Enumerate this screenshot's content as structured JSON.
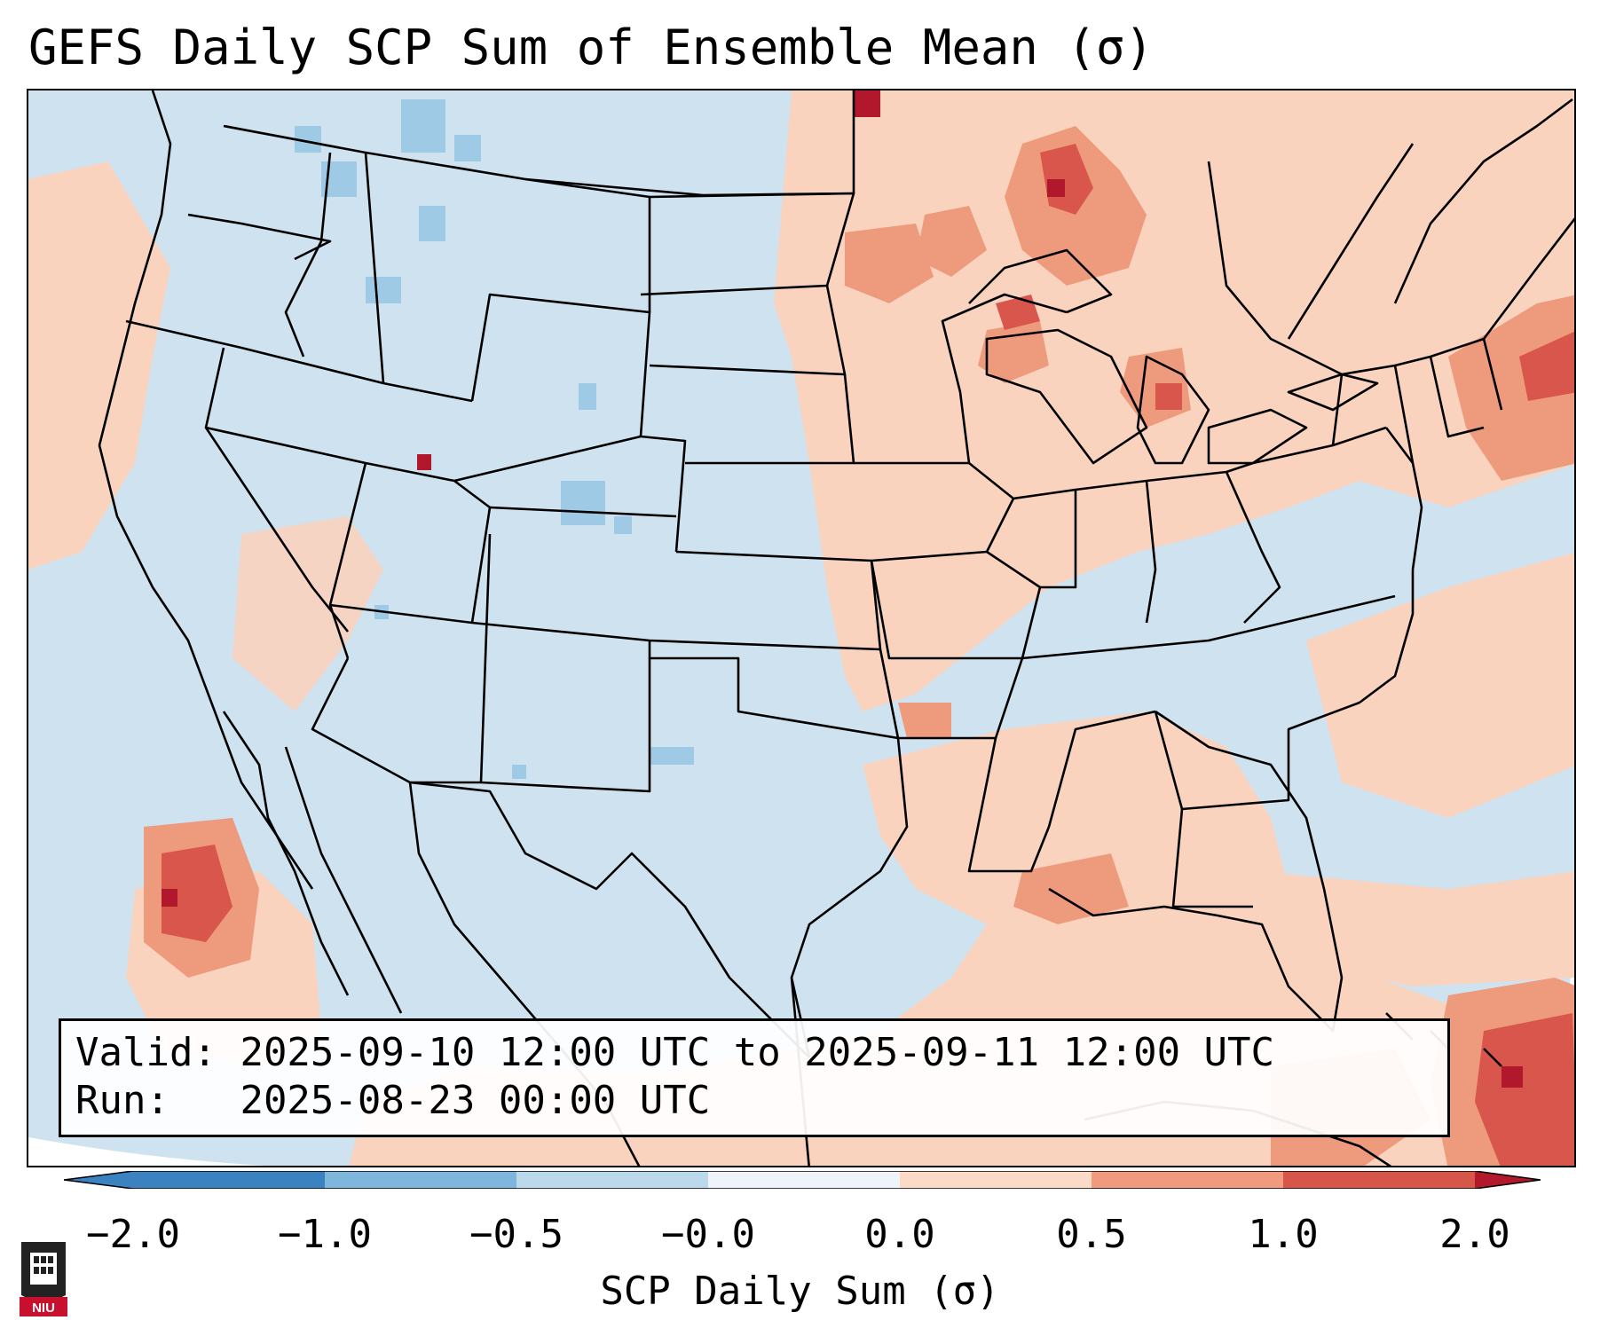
{
  "title": "GEFS Daily SCP Sum of Ensemble Mean (σ)",
  "info": {
    "valid_label": "Valid:",
    "valid_value": "2025-09-10 12:00 UTC to 2025-09-11 12:00 UTC",
    "run_label": "Run:",
    "run_value": "2025-08-23 00:00 UTC"
  },
  "colorbar": {
    "label": "SCP Daily Sum (σ)",
    "ticks": [
      "−2.0",
      "−1.0",
      "−0.5",
      "−0.0",
      "0.0",
      "0.5",
      "1.0",
      "2.0"
    ],
    "colors": [
      "#3b83c0",
      "#7fb6dc",
      "#bcd9ec",
      "#eef4f9",
      "#fcdac8",
      "#f29a7e",
      "#d6574a",
      "#b2192b"
    ]
  },
  "logo": {
    "text": "NIU",
    "icon": "niu-shield-icon"
  },
  "map": {
    "region": "Continental United States",
    "palette": {
      "neutral": "#cfe2f0",
      "light_red": "#fad3bf",
      "mid_red": "#ee9a7c",
      "strong_red": "#d8564b",
      "deep_red": "#b2182b",
      "light_blue": "#9fcae5"
    }
  }
}
